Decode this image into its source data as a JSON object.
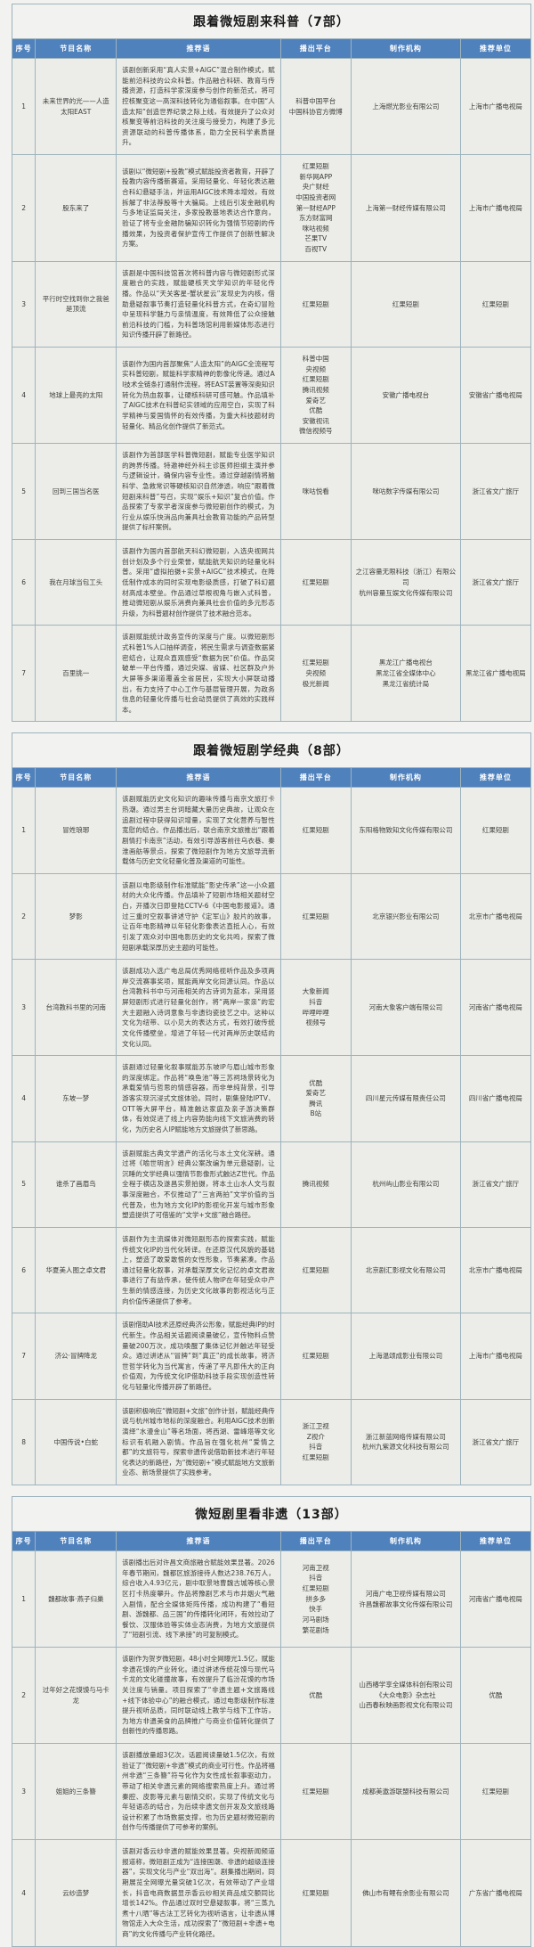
{
  "columns": [
    "序号",
    "节目名称",
    "推荐语",
    "播出平台",
    "制作机构",
    "推荐单位"
  ],
  "sections": [
    {
      "title": "跟着微短剧来科普（7部）",
      "rows": [
        {
          "no": "1",
          "name": "未来世界的光——人造太阳EAST",
          "rec": "该剧创新采用“真人实景+AIGC”混合制作模式，赋能前沿科技的公众科普。作品融合科研、教育与传播资源，打造科学家深度参与创作的新范式，将可控核聚变这一高深科技转化为通俗叙事。在中国“人造太阳”创造世界纪录之际上线，有效提升了公众对核聚变等前沿科技的关注度与接受力，构建了多元资源联动的科普传播体系，助力全民科学素质提升。",
          "platform": "科普中国平台\n中国科协官方微博",
          "producer": "上海燃光影业有限公司",
          "recommender": "上海市广播电视局"
        },
        {
          "no": "2",
          "name": "股东来了",
          "rec": "该剧以“微短剧+投教”模式赋能投资者教育，开辟了投教内容传播新赛道。采用轻量化、年轻化表达融合科幻悬疑手法，并运用AIGC技术降本增效，有效拆解了非法荐股等十大骗局。上线后引发金融机构与多地证监局关注，多家投教基地表达合作意向，验证了将专业金融防骗知识转化为强情节短剧的传播效果，为投资者保护宣传工作提供了创新性解决方案。",
          "platform": "红果短剧\n新华网APP\n央广财经\n中国投资者网\n第一财经APP\n东方财富网\n咪咕视频\n芒果TV\n百视TV",
          "producer": "上海第一财经传媒有限公司",
          "recommender": "上海市广播电视局"
        },
        {
          "no": "3",
          "name": "平行时空找到你之我爸是顶流",
          "rec": "该剧是中国科技馆首次将科普内容与微短剧形式深度融合的实践，赋能硬核天文学知识的年轻化传播。作品以“天关客星-蟹状星云”发现史为内核，借助悬疑叙事节奏打造轻量化科普方式，在奇幻冒险中呈现科学魅力与亲情温度，有效降低了公众接触前沿科技的门槛，为科普场馆利用新媒体形态进行知识传播开辟了新路径。",
          "platform": "红果短剧",
          "producer": "红果短剧",
          "recommender": "红果短剧"
        },
        {
          "no": "4",
          "name": "地球上最亮的太阳",
          "rec": "该剧作为国内首部聚焦“人造太阳”的AIGC全流程写实科普短剧，赋能科学家精神的影像化传递。通过AI技术全链条打通制作流程，将EAST装置等深奥知识转化为热血叙事，让硬核科研可感可触。作品填补了AIGC技术在科普纪实领域的应用空白，实现了科学精神与爱国情怀的有效传播，为重大科技题材的轻量化、精品化创作提供了新范式。",
          "platform": "科普中国\n央视频\n红果短剧\n腾讯视频\n爱奇艺\n优酷\n安徽视讯\n微信视频号",
          "producer": "安徽广播电视台",
          "recommender": "安徽省广播电视局"
        },
        {
          "no": "5",
          "name": "回到三国当名医",
          "rec": "该剧作为首部医学科普微短剧，赋能专业医学知识的跨界传播。特邀神经外科主诊医师担纲主演并参与逻辑设计，确保内容专业性。通过穿越剧情将脑科学、急救常识等硬核知识自然渗透，响应“跟着微短剧来科普”号召，实现“娱乐+知识”复合价值。作品探索了专家学者深度参与微短剧创作的模式，为行业从娱乐快消品向兼具社会教育功能的产品转型提供了标杆案例。",
          "platform": "咪咕悦看",
          "producer": "咪咕数字传媒有限公司",
          "recommender": "浙江省文广旅厅"
        },
        {
          "no": "6",
          "name": "我在月球当包工头",
          "rec": "该剧作为国内首部航天科幻微短剧，入选央视网共创计划及多个行业荣誉，赋能航天知识的轻量化科普。采用“虚拟拍摄+实景+AIGC”技术模式，在降低制作成本的同时实现电影级质感，打破了科幻题材高成本壁垒。作品通过草根视角与嵌入式科普，推动微短剧从娱乐消费向兼具社会价值的多元形态升级，为科普题材创作提供了技术融合范本。",
          "platform": "红果短剧",
          "producer": "之江容量无限科技（浙江）有限公司\n杭州容量互娱文化传媒有限公司",
          "recommender": "浙江省文广旅厅"
        },
        {
          "no": "7",
          "name": "百里挑一",
          "rec": "该剧赋能统计政务宣传的深度与广度。以微短剧形式科普1%人口抽样调查，将民生需求与调查数据紧密结合，让观众直观感受“数据为民”价值。作品突破单一平台传播，通过央媒、省媒、社区群及户外大屏等多渠道覆盖全省居民，实现大小屏联动播出，有力支持了中心工作与基层管理开展，为政务信息的轻量化传播与社会动员提供了高效的实践样本。",
          "platform": "红果短剧\n央视频\n极光新闻",
          "producer": "黑龙江广播电视台\n黑龙江省全媒体中心\n黑龙江省统计局",
          "recommender": "黑龙江省广播电视局"
        }
      ]
    },
    {
      "title": "跟着微短剧学经典（8部）",
      "rows": [
        {
          "no": "1",
          "name": "冒姓琅琊",
          "rec": "该剧赋能历史文化知识的趣味传播与南京文旅打卡热潮。通过男主台词暗藏大量历史典故，让观众在追剧过程中获得知识增量，实现了文化营养与智性宽慰的结合。作品播出后，联合南京文旅推出“跟着剧情打卡南京”活动，有效引导游客前往乌衣巷、秦淮画舫等景点，探索了微短剧作为地方文旅导流新载体与历史文化轻量化普及渠道的可能性。",
          "platform": "红果短剧",
          "producer": "东阳格物致知文化传媒有限公司",
          "recommender": "红果短剧"
        },
        {
          "no": "2",
          "name": "梦影",
          "rec": "该剧以电影级制作标准赋能“影史传承”这一小众题材的大众化传播。作品填补了短剧市场相关题材空白，开播次日即登陆CCTV-6《中国电影报道》。通过三重时空叙事讲述守护《定军山》胶片的故事，让百年电影精神以年轻化影像表达直抵人心，有效引发了观众对中国电影历史的文化共鸣，探索了微短剧承载深厚历史主题的可能性。",
          "platform": "红果短剧",
          "producer": "北京银兴影业有限公司",
          "recommender": "北京市广播电视局"
        },
        {
          "no": "3",
          "name": "台湾教科书里的河南",
          "rec": "该剧成功入选广电总局优秀网络视听作品及多项两岸交流赛事奖项，赋能两岸文化同源认同。作品以台湾教科书中与河南相关的古诗词为蓝本，采用竖屏短剧形式进行轻量化创作，将“两岸一家亲”的宏大主题融入诗词意象与非遗钧瓷技艺之中。这种以文化为纽带、以小见大的表达方式，有效打破传统文化传播壁垒，增进了年轻一代对两岸历史联结的文化认同。",
          "platform": "大象新闻\n抖音\n哔哩哔哩\n视频号",
          "producer": "河南大象客户端有限公司",
          "recommender": "河南省广播电视局"
        },
        {
          "no": "4",
          "name": "东坡一梦",
          "rec": "该剧通过轻量化叙事赋能苏东坡IP与眉山城市形象的深度绑定。作品将“唤鱼池”等三苏祠场景转化为承载爱情与哲思的情感容器，而非单纯背景，引导游客实现沉浸式文旅体验。同时，剧集登陆IPTV、OTT等大屏平台，精准触达家庭及亲子游决策群体，有效促进了线上内容势能向线下文旅消费的转化，为历史名人IP赋能地方文旅提供了新思路。",
          "platform": "优酷\n爱奇艺\n腾讯\nB站",
          "producer": "四川星元传媒有限责任公司",
          "recommender": "四川省广播电视局"
        },
        {
          "no": "5",
          "name": "谁杀了画眉鸟",
          "rec": "该剧赋能古典文学遗产的活化与本土文化深耕。通过将《喻世明言》经典公案改编为单元悬疑剧，让沉睡的文学经典以强情节影像形式触达Z世代。作品全程于横店及遂昌实景拍摄，将本土山水人文与叙事深度融合，不仅推动了“三言两拍”文学价值的当代普及，也为地方文化IP的影视化开发与城市形象塑造提供了可借鉴的“文学+文旅”融合路径。",
          "platform": "腾讯视频",
          "producer": "杭州屿山影业有限公司",
          "recommender": "浙江省文广旅厅"
        },
        {
          "no": "6",
          "name": "华夏美人图之卓文君",
          "rec": "该剧作为主流媒体对微短剧形态的探索实践，赋能传统文化IP的当代化转译。在还原汉代风貌的基础上，塑造了敢爱敢恨的女性形象，节奏紧凑。作品通过轻量化叙事，对承载深厚文化记忆的卓文君故事进行了有益传承，使传统人物IP在年轻受众中产生新的情感连接，为历史文化故事的影视活化与正向价值传递提供了参考。",
          "platform": "红果短剧",
          "producer": "北京剧汇影视文化有限公司",
          "recommender": "北京市广播电视局"
        },
        {
          "no": "7",
          "name": "济公·冒牌降龙",
          "rec": "该剧借助AI技术还原经典济公形象，赋能经典IP的时代新生。作品相关话题阅读量破亿，宣传物料点赞量破200万次，成功唤醒了集体记忆并触达年轻受众。通过讲述从“冒牌”到“真正”的成长故事，将济世哲学转化为当代寓言，传递了平凡即伟大的正向价值观，为传统文化IP借助科技手段实现创造性转化与轻量化传播开辟了新路径。",
          "platform": "红果短剧",
          "producer": "上海温颂成影业有限公司",
          "recommender": "上海市广播电视局"
        },
        {
          "no": "8",
          "name": "中国传说•白蛇",
          "rec": "该剧积极响应“微短剧+文旅”创作计划，赋能经典传说与杭州城市地标的深度融合。利用AIGC技术创新演绎“水漫金山”等名场面，将西湖、雷峰塔等文化标识有机融入剧情。作品旨在强化杭州“爱情之都”的文旅符号，探索非遗传说借助新技术进行年轻化表达的新路径，为“微短剧+”模式赋能地方文旅新业态、新场景提供了实践参考。",
          "platform": "浙江卫视\nZ视介\n抖音\n红果短剧",
          "producer": "浙江新蓝网络传媒有限公司\n杭州九紫源文化科技有限公司",
          "recommender": "浙江省文广旅厅"
        }
      ]
    },
    {
      "title": "微短剧里看非遗（13部）",
      "rows": [
        {
          "no": "1",
          "name": "魏都故事·燕子归巢",
          "rec": "该剧播出后对许昌文商旅融合赋能效果显著。2026年春节期间，魏都区旅游接待人数达238.76万人，综合收入4.93亿元，剧中取景地曹魏古城等核心景区打卡热度攀升。作品将豫剧艺术与市井烟火气融入剧情，配合全媒体矩阵传播，成功构建了“看短剧、游魏都、品三国”的传播转化闭环，有效拉动了餐饮、汉服体验等实体业态消费，为地方文旅提供了“短剧引流、线下承接”的可复制模式。",
          "platform": "河南卫视\n抖音\n红果短剧\n拼多多\n快手\n河马剧场\n繁花剧场",
          "producer": "河南广电卫视传媒有限公司\n许昌魏都故事文化传媒有限公司",
          "recommender": "河南省广播电视局"
        },
        {
          "no": "2",
          "name": "过年好之花馍馍与马卡龙",
          "rec": "该剧作为贺岁微短剧，48小时全网曝光1.5亿，赋能非遗花馍的产业转化。通过讲述传统花馍与现代马卡龙的文化碰撞故事，有效提升了临汾花馍的市场关注度与销量。项目探索了“非遗主题+文旅路线+线下体验中心”的融合模式，通过电影级制作标准提升视听品质，同时联动线上教学与线下工作坊，为地方非遗美食的品牌推广与商业价值转化提供了创新性的传播思路。",
          "platform": "优酷",
          "producer": "山西椿学享全媒体科创有限公司\n《大众电影》杂志社\n山西春秋映画影视文化有限公司",
          "recommender": "优酷"
        },
        {
          "no": "3",
          "name": "姐姐的三条簪",
          "rec": "该剧播放量超3亿次，话题阅读量破1.5亿次，有效验证了“微短剧+非遗”模式的商业可行性。作品将福州非遗“三条簪”符号化作为女性成长叙事驱动力，带动了相关非遗元素的网络搜索热度上升。通过将秦腔、皮影等元素与剧情交织，实现了传统文化与年轻语态的结合，为后续非遗文创开发及文旅线路设计积累了市场数据支撑，也为历史题材微短剧的创作与传播提供了可参考的案例。",
          "platform": "红果短剧",
          "producer": "成都美遨游联盟科技有限公司",
          "recommender": "红果短剧"
        },
        {
          "no": "4",
          "name": "云纱造梦",
          "rec": "该剧对香云纱非遗的赋能效果显著。央视新闻频道报道称，微短剧正成为“连接国潮、非遗的超级连接器”，实现文化与产业“双出海”。剧集播出期间，同期展览全网曝光量突破1亿次，有效带动了产业增长，抖音电商数据显示香云纱相关商品成交额同比增长142%。作品通过双时空悬疑叙事，将“三蒸九煮十八晒”等古法工艺转化为视听语言，让非遗从博物馆走入大众生活，成功探索了“微短剧+非遗+电商”的文化传播与产业转化路径。",
          "platform": "红果短剧",
          "producer": "佛山市有鲤有余影业有限公司",
          "recommender": "广东省广播电视局"
        }
      ]
    }
  ]
}
